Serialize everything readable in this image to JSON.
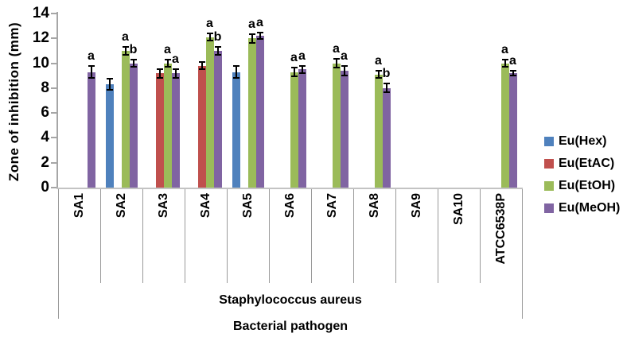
{
  "chart_data": {
    "type": "bar",
    "title": "",
    "ylabel": "Zone of inhibition (mm)",
    "xlabel": "Bacterial pathogen",
    "group_label": "Staphylococcus aureus",
    "ylim": [
      0,
      14
    ],
    "yticks": [
      0,
      2,
      4,
      6,
      8,
      10,
      12,
      14
    ],
    "grid": false,
    "legend_position": "right",
    "categories": [
      "SA1",
      "SA2",
      "SA3",
      "SA4",
      "SA5",
      "SA6",
      "SA7",
      "SA8",
      "SA9",
      "SA10",
      "ATCC6538P"
    ],
    "series": [
      {
        "name": "Eu(Hex)",
        "color": "#4f81bd",
        "values": [
          null,
          8.3,
          null,
          null,
          9.3,
          null,
          null,
          null,
          null,
          null,
          null
        ],
        "errors": [
          null,
          0.45,
          null,
          null,
          0.5,
          null,
          null,
          null,
          null,
          null,
          null
        ],
        "letters": [
          null,
          null,
          null,
          null,
          null,
          null,
          null,
          null,
          null,
          null,
          null
        ]
      },
      {
        "name": "Eu(EtAC)",
        "color": "#c0504d",
        "values": [
          null,
          null,
          9.2,
          9.8,
          null,
          null,
          null,
          null,
          null,
          null,
          null
        ],
        "errors": [
          null,
          null,
          0.35,
          0.3,
          null,
          null,
          null,
          null,
          null,
          null,
          null
        ],
        "letters": [
          null,
          null,
          null,
          null,
          null,
          null,
          null,
          null,
          null,
          null,
          null
        ]
      },
      {
        "name": "Eu(EtOH)",
        "color": "#9bbb59",
        "values": [
          null,
          11.0,
          10.0,
          12.1,
          12.0,
          9.3,
          10.0,
          9.1,
          null,
          null,
          10.0
        ],
        "errors": [
          null,
          0.3,
          0.3,
          0.3,
          0.35,
          0.35,
          0.35,
          0.3,
          null,
          null,
          0.3
        ],
        "letters": [
          null,
          "a",
          "a",
          "a",
          "a",
          "a",
          "a",
          "a",
          null,
          null,
          "a"
        ]
      },
      {
        "name": "Eu(MeOH)",
        "color": "#8064a2",
        "values": [
          9.3,
          10.0,
          9.2,
          11.0,
          12.2,
          9.5,
          9.4,
          8.0,
          null,
          null,
          9.2
        ],
        "errors": [
          0.45,
          0.3,
          0.35,
          0.3,
          0.25,
          0.3,
          0.4,
          0.35,
          null,
          null,
          0.2
        ],
        "letters": [
          "a",
          "b",
          "a",
          "b",
          "a",
          "a",
          "a",
          "b",
          null,
          null,
          "a"
        ]
      }
    ]
  }
}
